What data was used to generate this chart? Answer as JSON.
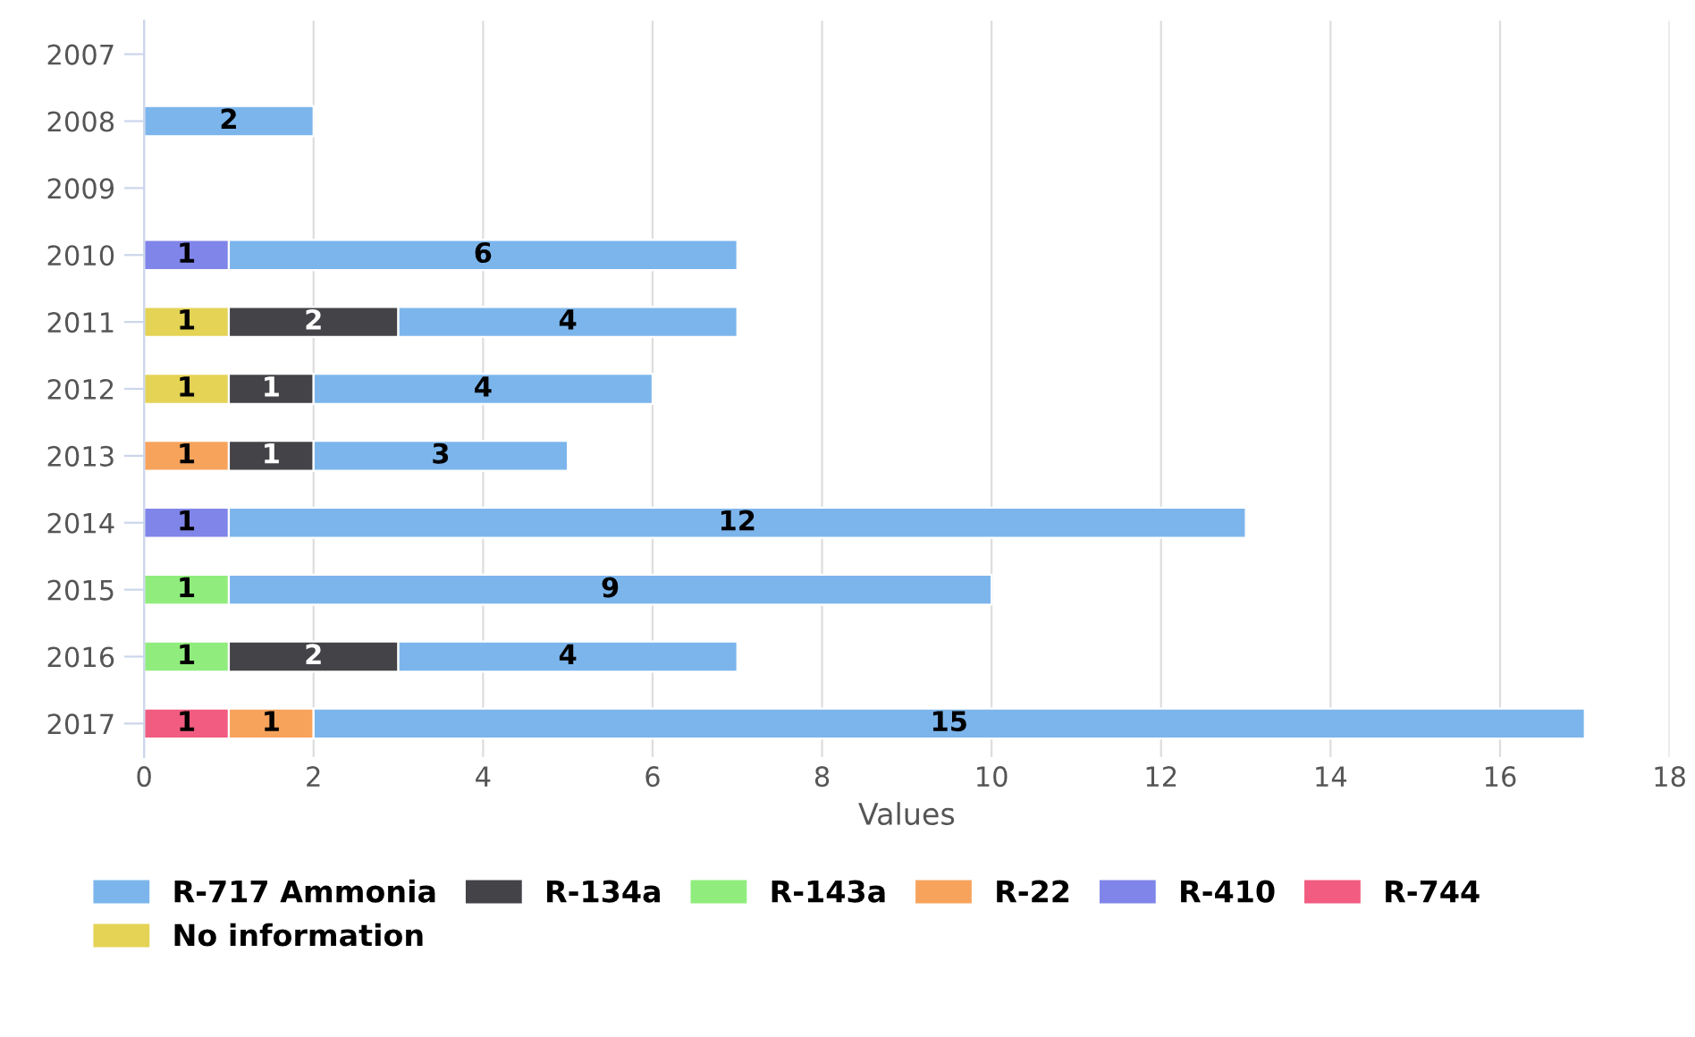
{
  "chart_data": {
    "type": "bar",
    "orientation": "horizontal",
    "stacked": true,
    "data_labels": true,
    "xlabel": "Values",
    "categories": [
      "2007",
      "2008",
      "2009",
      "2010",
      "2011",
      "2012",
      "2013",
      "2014",
      "2015",
      "2016",
      "2017"
    ],
    "xlim": [
      0,
      18
    ],
    "xticks": [
      0,
      2,
      4,
      6,
      8,
      10,
      12,
      14,
      16,
      18
    ],
    "grid": "x",
    "legend": "bottom",
    "series": [
      {
        "name": "No information",
        "color": "#e4d354",
        "values": [
          null,
          null,
          null,
          null,
          1,
          1,
          null,
          null,
          null,
          null,
          null
        ]
      },
      {
        "name": "R-744",
        "color": "#f15c80",
        "values": [
          null,
          null,
          null,
          null,
          null,
          null,
          null,
          null,
          null,
          null,
          1
        ]
      },
      {
        "name": "R-410",
        "color": "#8085e9",
        "values": [
          null,
          null,
          null,
          1,
          null,
          null,
          null,
          1,
          null,
          null,
          null
        ]
      },
      {
        "name": "R-22",
        "color": "#f7a35c",
        "values": [
          null,
          null,
          null,
          null,
          null,
          null,
          1,
          null,
          null,
          null,
          1
        ]
      },
      {
        "name": "R-143a",
        "color": "#90ed7d",
        "values": [
          null,
          null,
          null,
          null,
          null,
          null,
          null,
          null,
          1,
          1,
          null
        ]
      },
      {
        "name": "R-134a",
        "color": "#434348",
        "values": [
          null,
          null,
          null,
          null,
          2,
          1,
          1,
          null,
          null,
          2,
          null
        ]
      },
      {
        "name": "R-717 Ammonia",
        "color": "#7cb5ec",
        "values": [
          null,
          2,
          null,
          6,
          4,
          4,
          3,
          12,
          9,
          4,
          15
        ]
      }
    ]
  }
}
